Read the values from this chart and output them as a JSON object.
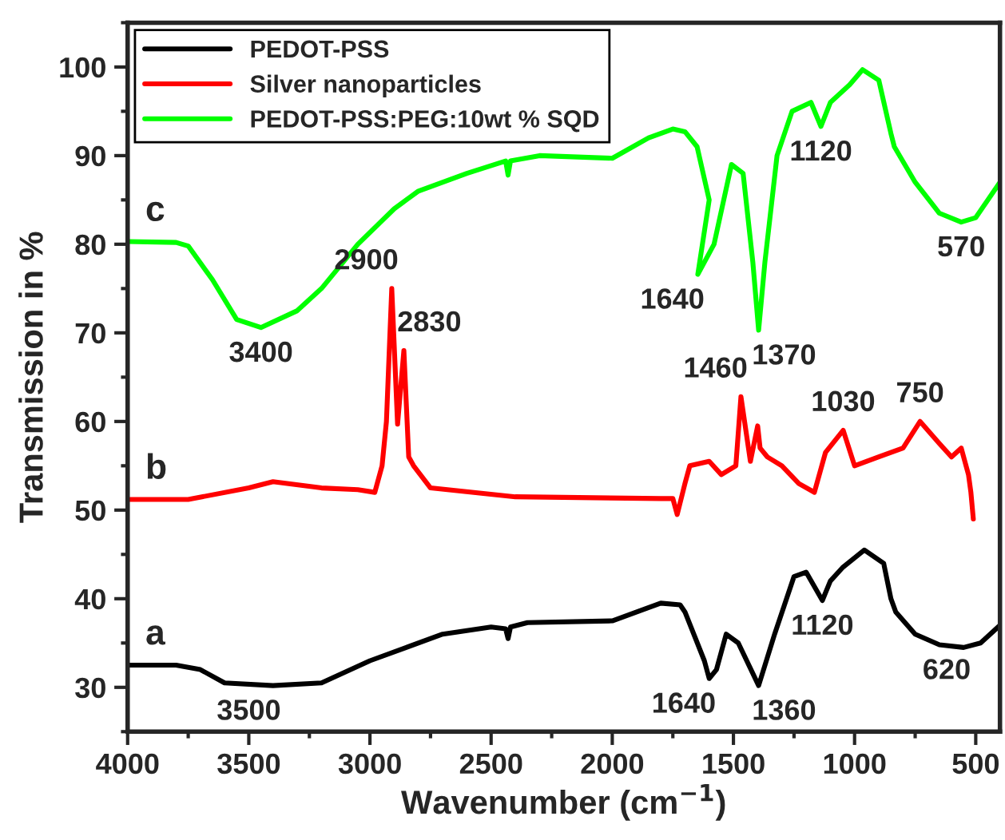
{
  "chart_data": {
    "type": "line",
    "xlabel": "Wavenumber (cm$^{−1}$)",
    "ylabel": "Transmission in %",
    "xlim": [
      4000,
      400
    ],
    "xticks": [
      4000,
      3500,
      3000,
      2500,
      2000,
      1500,
      1000,
      500
    ],
    "ylim": [
      25,
      105
    ],
    "yticks": [
      30,
      40,
      50,
      60,
      70,
      80,
      90,
      100
    ],
    "legend": "top left",
    "grid": false,
    "marker": "none",
    "line_style": "solid",
    "series": [
      {
        "name": "PEDOT-PSS",
        "color": "#000000",
        "x": [
          4000,
          3800,
          3700,
          3600,
          3400,
          3200,
          3000,
          2850,
          2700,
          2500,
          2440,
          2430,
          2420,
          2350,
          2000,
          1800,
          1720,
          1700,
          1620,
          1600,
          1570,
          1530,
          1480,
          1396,
          1330,
          1250,
          1200,
          1133,
          1100,
          1050,
          960,
          880,
          850,
          830,
          750,
          650,
          550,
          480,
          400
        ],
        "values": [
          32.5,
          32.5,
          32,
          30.5,
          30.2,
          30.5,
          33,
          34.5,
          36,
          36.8,
          36.6,
          35.5,
          36.8,
          37.3,
          37.5,
          39.5,
          39.3,
          38.5,
          33,
          31,
          32,
          36,
          35,
          30.2,
          36,
          42.5,
          43,
          39.8,
          42,
          43.5,
          45.5,
          44,
          40,
          38.5,
          36,
          34.8,
          34.5,
          35,
          37
        ]
      },
      {
        "name": "Silver nanoparticles",
        "color": "#ff0000",
        "x": [
          4000,
          3750,
          3500,
          3400,
          3200,
          3050,
          2980,
          2950,
          2932,
          2910,
          2886,
          2860,
          2840,
          2820,
          2750,
          2400,
          1800,
          1750,
          1732,
          1700,
          1680,
          1600,
          1550,
          1490,
          1469,
          1430,
          1400,
          1390,
          1360,
          1300,
          1230,
          1166,
          1120,
          1047,
          1000,
          900,
          800,
          730,
          650,
          600,
          560,
          530,
          520,
          510
        ],
        "values": [
          51.2,
          51.2,
          52.5,
          53.2,
          52.5,
          52.3,
          52,
          55,
          60,
          75,
          59.7,
          68,
          56,
          55,
          52.5,
          51.5,
          51.3,
          51.3,
          49.5,
          53,
          55,
          55.5,
          54,
          55,
          62.8,
          55.5,
          59.5,
          57,
          56,
          55,
          53,
          52,
          56.5,
          59,
          55,
          56,
          57,
          60,
          57.5,
          56,
          57,
          54,
          52,
          49
        ]
      },
      {
        "name": "PEDOT-PSS:PEG:10wt % SQD",
        "color": "#00ff00",
        "x": [
          4000,
          3800,
          3750,
          3650,
          3550,
          3450,
          3300,
          3200,
          3050,
          2900,
          2800,
          2600,
          2440,
          2430,
          2420,
          2300,
          2000,
          1850,
          1750,
          1700,
          1650,
          1600,
          1647,
          1580,
          1508,
          1460,
          1420,
          1396,
          1370,
          1320,
          1258,
          1180,
          1139,
          1100,
          1020,
          967,
          900,
          850,
          836,
          750,
          650,
          560,
          500,
          400
        ],
        "values": [
          80.3,
          80.2,
          79.8,
          76,
          71.5,
          70.6,
          72.5,
          75,
          80,
          84,
          86,
          88,
          89.4,
          87.8,
          89.4,
          90,
          89.7,
          92,
          93,
          92.7,
          91,
          85,
          76.6,
          80,
          89,
          88,
          78,
          70.3,
          78,
          90,
          95,
          96,
          93.3,
          96,
          98,
          99.7,
          98.5,
          92.5,
          91,
          87,
          83.5,
          82.5,
          83,
          87
        ]
      }
    ],
    "annotations": [
      "a",
      "b",
      "c",
      {
        "text": "3500",
        "x": 3500,
        "y": 30.2
      },
      {
        "text": "1640",
        "x": 1600,
        "y": 31
      },
      {
        "text": "1360",
        "x": 1396,
        "y": 30.2
      },
      {
        "text": "1120",
        "x": 1133,
        "y": 39.8
      },
      {
        "text": "620",
        "x": 620,
        "y": 34.8
      },
      {
        "text": "2900",
        "x": 2910,
        "y": 75
      },
      {
        "text": "2830",
        "x": 2860,
        "y": 68
      },
      {
        "text": "1460",
        "x": 1469,
        "y": 62.8
      },
      {
        "text": "1030",
        "x": 1047,
        "y": 59
      },
      {
        "text": "750",
        "x": 730,
        "y": 60
      },
      {
        "text": "3400",
        "x": 3450,
        "y": 70.6
      },
      {
        "text": "1640",
        "x": 1647,
        "y": 76.6
      },
      {
        "text": "1370",
        "x": 1396,
        "y": 70.3
      },
      {
        "text": "1120",
        "x": 1139,
        "y": 93.3
      },
      {
        "text": "570",
        "x": 560,
        "y": 82.5
      }
    ]
  }
}
